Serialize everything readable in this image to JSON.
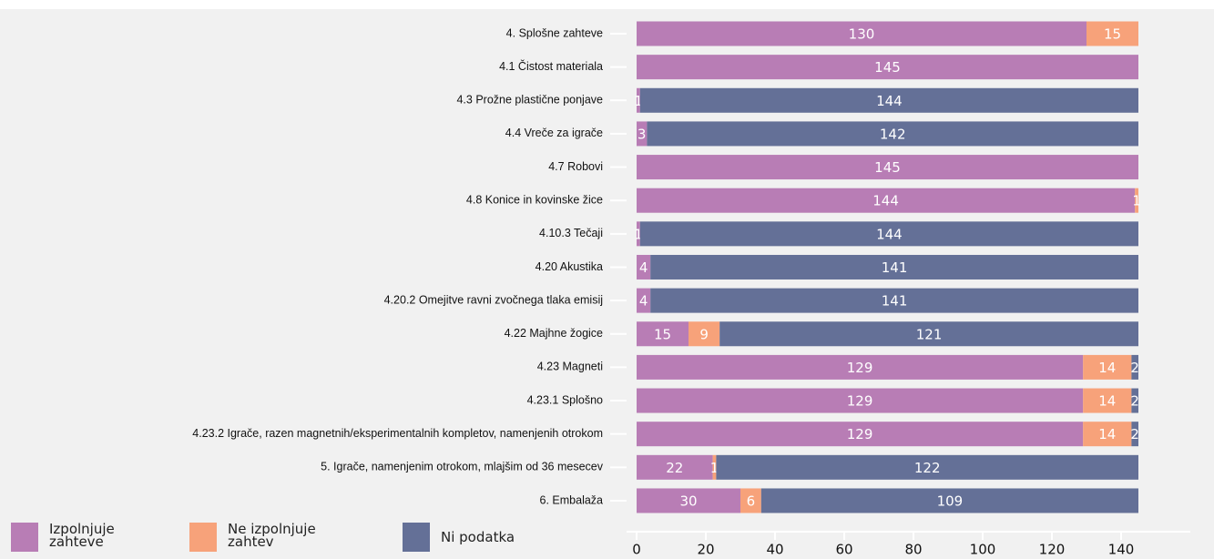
{
  "chart_data": {
    "type": "stacked-bar-horizontal",
    "categories": [
      "4. Splošne zahteve",
      "4.1 Čistost materiala",
      "4.3 Prožne plastične ponjave",
      "4.4 Vreče za igrače",
      "4.7 Robovi",
      "4.8 Konice in kovinske žice",
      "4.10.3 Tečaji",
      "4.20 Akustika",
      "4.20.2 Omejitve ravni zvočnega tlaka emisij",
      "4.22 Majhne žogice",
      "4.23 Magneti",
      "4.23.1 Splošno",
      "4.23.2 Igrače, razen magnetnih/eksperimentalnih kompletov, namenjenih otrokom",
      "5. Igrače, namenjenim otrokom, mlajšim od 36 mesecev",
      "6. Embalaža"
    ],
    "series": [
      {
        "name": "Izpolnjuje zahteve",
        "color": "#b87db5",
        "values": [
          130,
          145,
          1,
          3,
          145,
          144,
          1,
          4,
          4,
          15,
          129,
          129,
          129,
          22,
          30
        ]
      },
      {
        "name": "Ne izpolnjuje zahtev",
        "color": "#f7a27a",
        "values": [
          15,
          null,
          null,
          null,
          null,
          1,
          null,
          null,
          null,
          9,
          14,
          14,
          14,
          1,
          6
        ]
      },
      {
        "name": "Ni podatka",
        "color": "#647097",
        "values": [
          null,
          null,
          144,
          142,
          null,
          null,
          144,
          141,
          141,
          121,
          2,
          2,
          2,
          122,
          109
        ]
      }
    ],
    "xlim": [
      0,
      160
    ],
    "xticks": [
      0,
      20,
      40,
      60,
      80,
      100,
      120,
      140
    ]
  }
}
